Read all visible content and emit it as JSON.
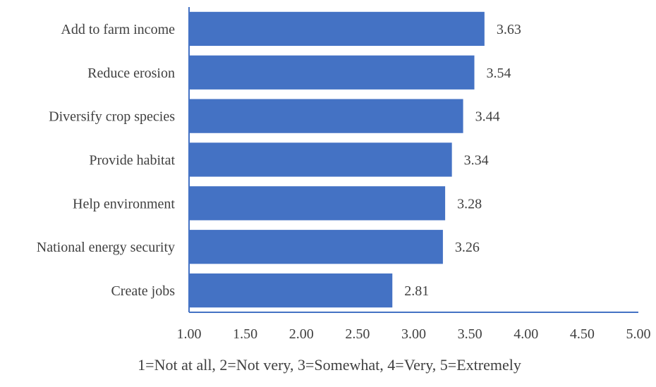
{
  "chart_data": {
    "type": "bar",
    "orientation": "horizontal",
    "categories": [
      "Add to farm income",
      "Reduce erosion",
      "Diversify crop species",
      "Provide habitat",
      "Help environment",
      "National energy security",
      "Create jobs"
    ],
    "values": [
      3.63,
      3.54,
      3.44,
      3.34,
      3.28,
      3.26,
      2.81
    ],
    "data_labels": [
      "3.63",
      "3.54",
      "3.44",
      "3.34",
      "3.28",
      "3.26",
      "2.81"
    ],
    "x_ticks": [
      "1.00",
      "1.50",
      "2.00",
      "2.50",
      "3.00",
      "3.50",
      "4.00",
      "4.50",
      "5.00"
    ],
    "xlim": [
      1,
      5
    ],
    "xlabel": "1=Not at all, 2=Not very, 3=Somewhat, 4=Very, 5=Extremely",
    "ylabel": "",
    "title": "",
    "grid": false,
    "bar_color": "#4472C4",
    "axis_color": "#4472C4",
    "text_color": "#404040"
  }
}
